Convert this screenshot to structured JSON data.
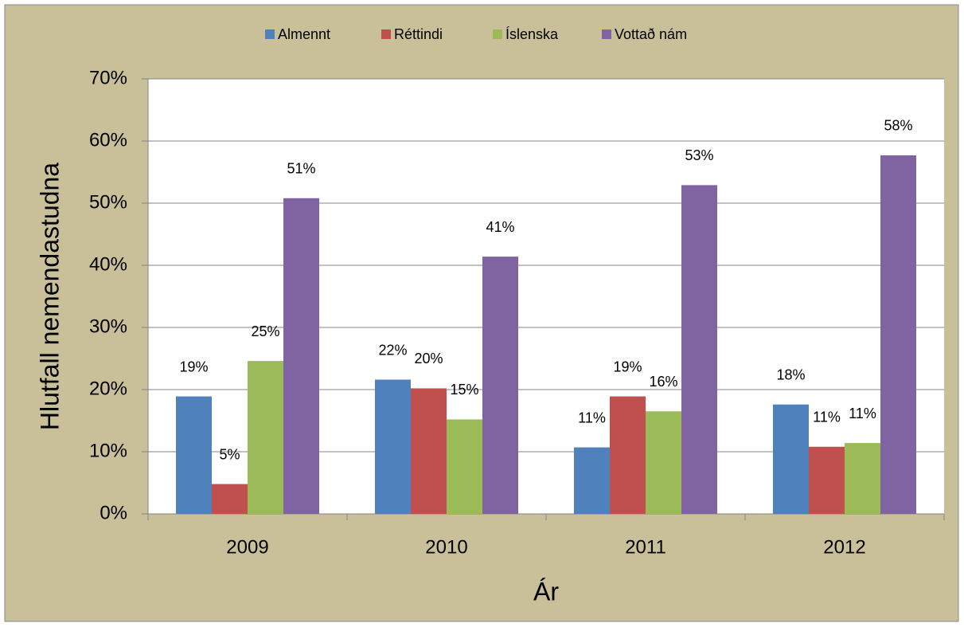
{
  "chart_data": {
    "type": "bar",
    "categories": [
      "2009",
      "2010",
      "2011",
      "2012"
    ],
    "series": [
      {
        "name": "Almennt",
        "color": "#4f81bd",
        "values": [
          18.9,
          21.6,
          10.7,
          17.6
        ],
        "value_labels": [
          "19%",
          "22%",
          "11%",
          "18%"
        ]
      },
      {
        "name": "Réttindi",
        "color": "#c0504d",
        "values": [
          4.8,
          20.2,
          18.9,
          10.8
        ],
        "value_labels": [
          "5%",
          "20%",
          "19%",
          "11%"
        ]
      },
      {
        "name": "Íslenska",
        "color": "#9bbb59",
        "values": [
          24.6,
          15.2,
          16.5,
          11.4
        ],
        "value_labels": [
          "25%",
          "15%",
          "16%",
          "11%"
        ]
      },
      {
        "name": "Vottað nám",
        "color": "#8064a2",
        "values": [
          50.8,
          41.4,
          52.9,
          57.7
        ],
        "value_labels": [
          "51%",
          "41%",
          "53%",
          "58%"
        ]
      }
    ],
    "ylabel": "Hlutfall nemendastudna",
    "xlabel": "Ár",
    "ylim": [
      0,
      70
    ],
    "yticks": [
      {
        "value": 0,
        "label": "0%"
      },
      {
        "value": 10,
        "label": "10%"
      },
      {
        "value": 20,
        "label": "20%"
      },
      {
        "value": 30,
        "label": "30%"
      },
      {
        "value": 40,
        "label": "40%"
      },
      {
        "value": 50,
        "label": "50%"
      },
      {
        "value": 60,
        "label": "60%"
      },
      {
        "value": 70,
        "label": "70%"
      }
    ],
    "grid": true,
    "legend": "top"
  }
}
